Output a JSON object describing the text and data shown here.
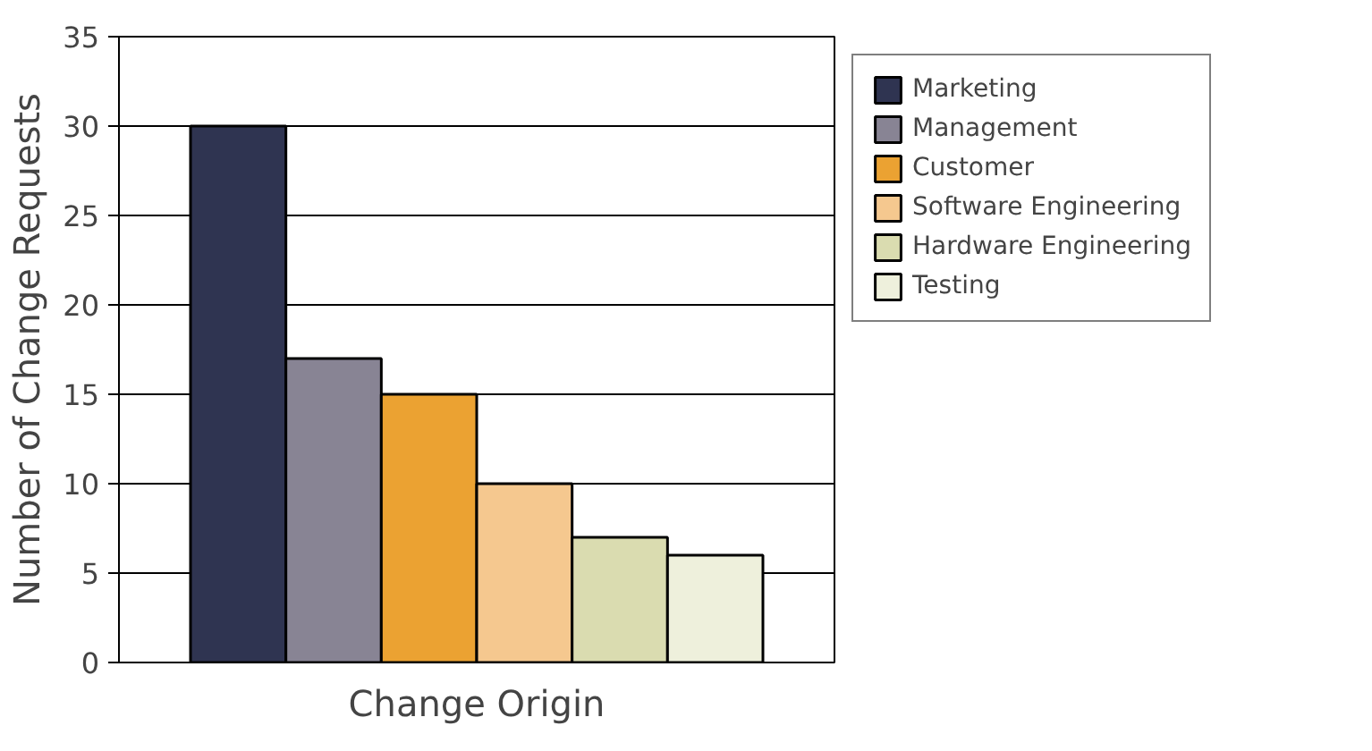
{
  "chart_data": {
    "type": "bar",
    "xlabel": "Change Origin",
    "ylabel": "Number of Change Requests",
    "categories": [
      null
    ],
    "series": [
      {
        "name": "Marketing",
        "color": "#2f3451",
        "values": [
          30
        ]
      },
      {
        "name": "Management",
        "color": "#888494",
        "values": [
          17
        ]
      },
      {
        "name": "Customer",
        "color": "#eba232",
        "values": [
          15
        ]
      },
      {
        "name": "Software Engineering",
        "color": "#f5c88f",
        "values": [
          10
        ]
      },
      {
        "name": "Hardware Engineering",
        "color": "#dadcb0",
        "values": [
          7
        ]
      },
      {
        "name": "Testing",
        "color": "#eef0dc",
        "values": [
          6
        ]
      }
    ],
    "ylim": [
      0,
      35
    ],
    "yticks": [
      0,
      5,
      10,
      15,
      20,
      25,
      30,
      35
    ],
    "grid": "y",
    "legend": "top right",
    "tick_labels": "y"
  }
}
